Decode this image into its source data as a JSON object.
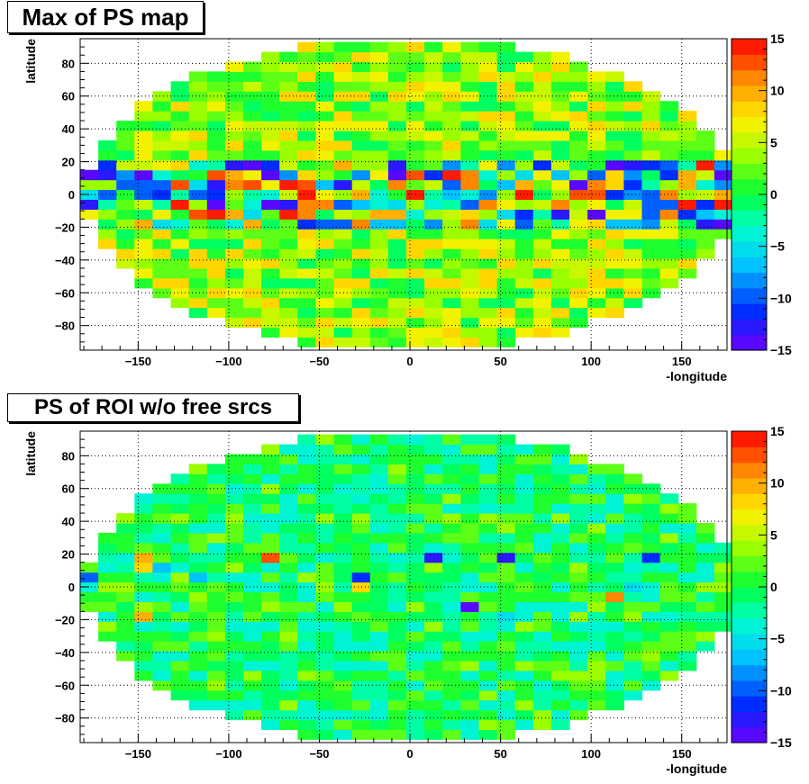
{
  "chart_data": [
    {
      "type": "heatmap",
      "title": "Max of PS map",
      "xlabel": "-longitude",
      "ylabel": "latitude",
      "xlim": [
        -182,
        175
      ],
      "ylim": [
        -95,
        95
      ],
      "zlim": [
        -15,
        15
      ],
      "x_ticks": [
        -150,
        -100,
        -50,
        0,
        50,
        100,
        150
      ],
      "y_ticks": [
        -80,
        -60,
        -40,
        -20,
        0,
        20,
        40,
        60,
        80
      ],
      "z_ticks": [
        -15,
        -10,
        -5,
        0,
        5,
        10,
        15
      ],
      "grid": true,
      "colorbar": "right",
      "description_note": "",
      "dominant_values": "zero-band around latitude 0 shows strong high (red, ~14) and low (violet, ~-13) cells; mid latitudes mostly 3-8"
    },
    {
      "type": "heatmap",
      "title": "PS of ROI w/o free srcs",
      "xlabel": "-longitude",
      "ylabel": "latitude",
      "xlim": [
        -182,
        175
      ],
      "ylim": [
        -95,
        95
      ],
      "zlim": [
        -15,
        15
      ],
      "x_ticks": [
        -150,
        -100,
        -50,
        0,
        50,
        100,
        150
      ],
      "y_ticks": [
        -80,
        -60,
        -40,
        -20,
        0,
        20,
        40,
        60,
        80
      ],
      "z_ticks": [
        -15,
        -10,
        -5,
        0,
        5,
        10,
        15
      ],
      "grid": true,
      "colorbar": "right",
      "dominant_values": "mostly -4 to +3; a few cells near latitude 0 reach +14 or -12"
    }
  ],
  "labels": {
    "title0": "Max of PS map",
    "title1": "PS of ROI w/o free srcs",
    "xlabel": "-longitude",
    "ylabel": "latitude"
  }
}
